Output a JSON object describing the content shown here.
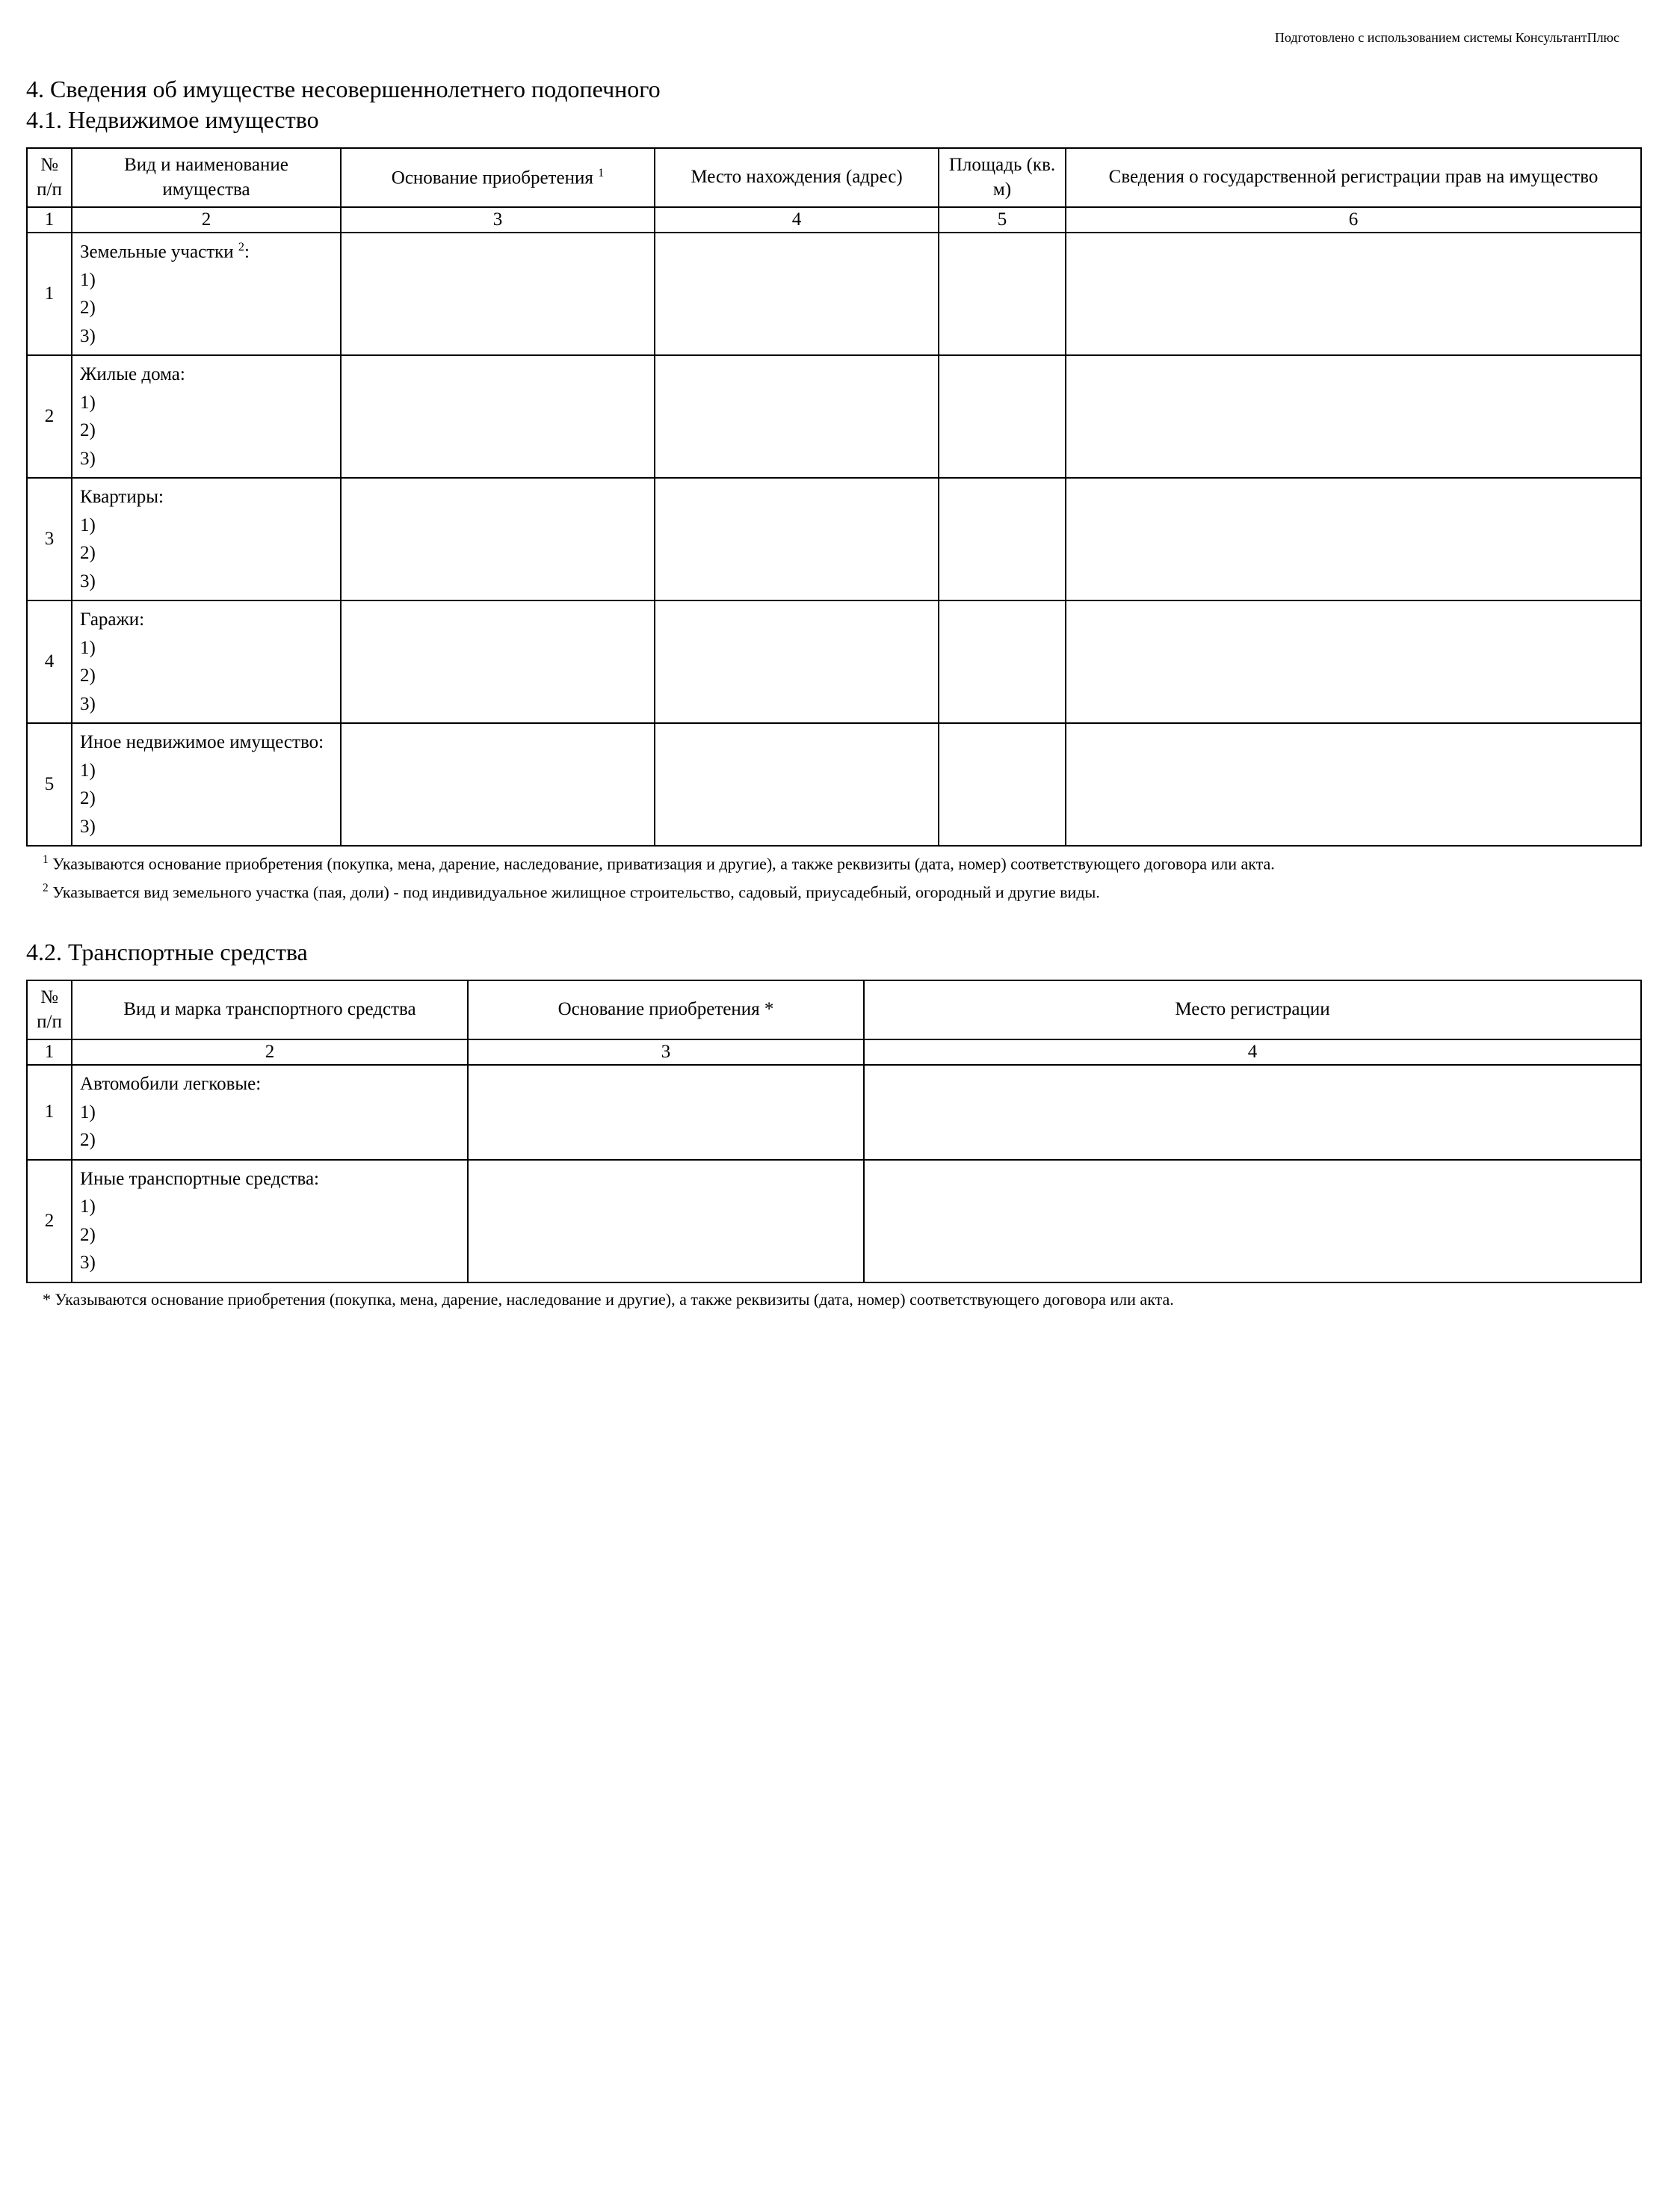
{
  "watermark": "Подготовлено с использованием системы КонсультантПлюс",
  "section4_title": "4. Сведения об имуществе несовершеннолетнего подопечного",
  "section4_1_title": "4.1. Недвижимое имущество",
  "table1": {
    "columns": {
      "num": "№ п/п",
      "kind": "Вид и наименование имущества",
      "basis_pre": "Основание приобретения ",
      "basis_sup": "1",
      "location": "Место нахождения (адрес)",
      "area": "Площадь (кв. м)",
      "registration": "Сведения о государственной регистрации прав на имущество"
    },
    "numrow": [
      "1",
      "2",
      "3",
      "4",
      "5",
      "6"
    ],
    "rows": [
      {
        "n": "1",
        "label_pre": "Земельные участки ",
        "label_sup": "2",
        "label_post": ":",
        "items": [
          "1)",
          "2)",
          "3)"
        ]
      },
      {
        "n": "2",
        "label_pre": "Жилые дома:",
        "label_sup": "",
        "label_post": "",
        "items": [
          "1)",
          "2)",
          "3)"
        ]
      },
      {
        "n": "3",
        "label_pre": "Квартиры:",
        "label_sup": "",
        "label_post": "",
        "items": [
          "1)",
          "2)",
          "3)"
        ]
      },
      {
        "n": "4",
        "label_pre": "Гаражи:",
        "label_sup": "",
        "label_post": "",
        "items": [
          "1)",
          "2)",
          "3)"
        ]
      },
      {
        "n": "5",
        "label_pre": "Иное недвижимое имущество:",
        "label_sup": "",
        "label_post": "",
        "items": [
          "1)",
          "2)",
          "3)"
        ]
      }
    ]
  },
  "footnote1_sup": "1",
  "footnote1_text": " Указываются основание приобретения (покупка, мена, дарение, наследование, приватизация и другие), а также реквизиты (дата, номер) соответствующего договора или акта.",
  "footnote2_sup": "2",
  "footnote2_text": " Указывается вид земельного участка (пая, доли) - под индивидуальное жилищное строительство, садовый, приусадебный, огородный и другие виды.",
  "section4_2_title": "4.2. Транспортные средства",
  "table2": {
    "columns": {
      "num": "№ п/п",
      "kind": "Вид и марка транспортного средства",
      "basis": "Основание приобретения *",
      "reg": "Место регистрации"
    },
    "numrow": [
      "1",
      "2",
      "3",
      "4"
    ],
    "rows": [
      {
        "n": "1",
        "label": "Автомобили легковые:",
        "items": [
          "1)",
          "2)"
        ]
      },
      {
        "n": "2",
        "label": "Иные транспортные средства:",
        "items": [
          "1)",
          "2)",
          "3)"
        ]
      }
    ]
  },
  "footnote3_pre": "* ",
  "footnote3_text": "Указываются основание приобретения (покупка, мена, дарение, наследование и другие), а также реквизиты (дата, номер) соответствующего договора или акта."
}
